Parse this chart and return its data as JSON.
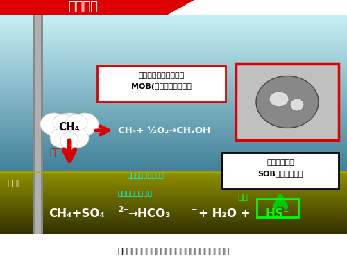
{
  "title": "図６．メタン酸化細菌および硫黄酸化細菌の概念図",
  "bg_color": "#ffffff",
  "header_text": "掘削船底",
  "header_bg": "#dd0000",
  "header_text_color": "#ffffff",
  "water_color_top": "#c8f0f4",
  "water_color_bottom": "#60909a",
  "seafloor_color_top": "#909000",
  "seafloor_color_bottom": "#404000",
  "mob_box_text1": "好気性メタン酸化細菌",
  "mob_box_text2": "MOB(水柱・海底環境）",
  "mob_box_border": "#dd0000",
  "mob_box_bg": "#ffffff",
  "aerobic_eq": "CH₄+ ½O₂→CH₃OH",
  "aerobic_eq_color": "#ffffff",
  "ch4_cloud_text": "CH₄",
  "aerobic_arrow_color": "#dd0000",
  "oxidation_label_water": "酸化",
  "oxidation_label_water_color": "#dd0000",
  "srb_label": "硫酸還元菌（還元）",
  "srb_label_color": "#00ffff",
  "sob_box_text1": "硫黄酸化細菌",
  "sob_box_text2": "SOB（海底環境）",
  "sob_box_border": "#000000",
  "sob_box_bg": "#ffffff",
  "anaerobic_label": "嫌気性メタン酸化",
  "anaerobic_label_color": "#00ffff",
  "hs_text": "HS⁻",
  "hs_box_color": "#00ff00",
  "anaerobic_eq_color": "#ffffff",
  "oxidation_label_floor": "酸化",
  "oxidation_label_floor_color": "#00ff00",
  "sob_arrow_color": "#00cc00",
  "production_well_text": "生産井",
  "production_well_color": "#ffffff",
  "down_arrow_color": "#dd0000",
  "caption_text": "図６．メタン酸化細菌および硫黄酸化細菌の概念図"
}
